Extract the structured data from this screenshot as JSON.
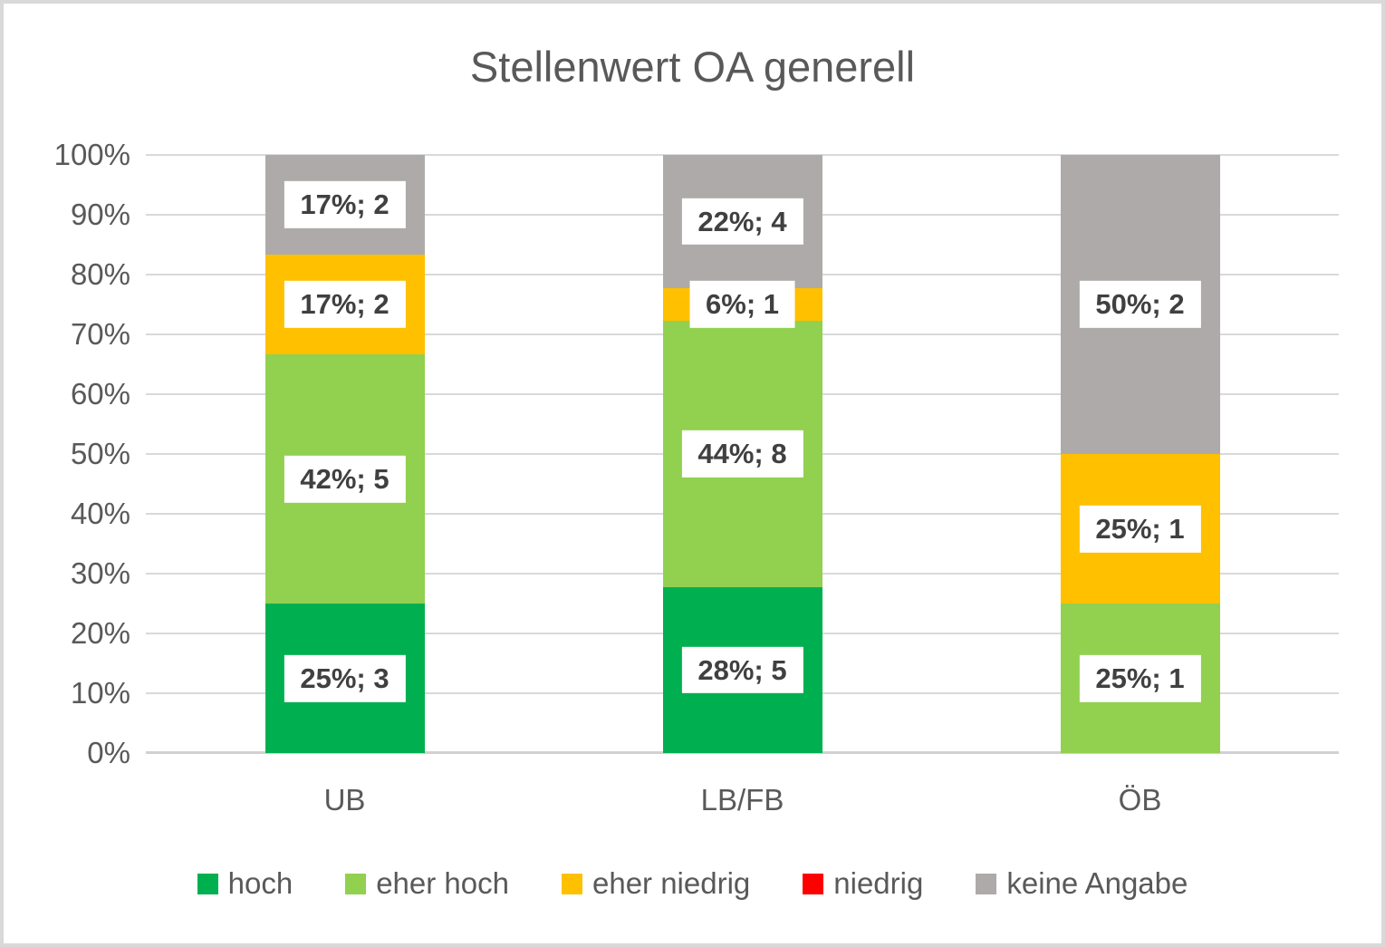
{
  "window": {
    "background_color": "#FFFFFF",
    "frame_border_color": "#D9D9D9"
  },
  "chart_data": {
    "type": "bar",
    "subtype": "stacked-100-percent",
    "title": "Stellenwert OA generell",
    "categories": [
      "UB",
      "LB/FB",
      "ÖB"
    ],
    "y_ticks": [
      "0%",
      "10%",
      "20%",
      "30%",
      "40%",
      "50%",
      "60%",
      "70%",
      "80%",
      "90%",
      "100%"
    ],
    "ylim": [
      0,
      100
    ],
    "grid": true,
    "gridline_color": "#D9D9D9",
    "legend_position": "bottom",
    "series": [
      {
        "name": "hoch",
        "color": "#00B050",
        "values": [
          25,
          27.78,
          0
        ],
        "counts": [
          3,
          5,
          0
        ],
        "labels": [
          "25%; 3",
          "28%; 5",
          ""
        ]
      },
      {
        "name": "eher hoch",
        "color": "#92D050",
        "values": [
          41.67,
          44.44,
          25
        ],
        "counts": [
          5,
          8,
          1
        ],
        "labels": [
          "42%; 5",
          "44%; 8",
          "25%; 1"
        ]
      },
      {
        "name": "eher niedrig",
        "color": "#FFC000",
        "values": [
          16.67,
          5.56,
          25
        ],
        "counts": [
          2,
          1,
          1
        ],
        "labels": [
          "17%; 2",
          "6%; 1",
          "25%; 1"
        ]
      },
      {
        "name": "niedrig",
        "color": "#FF0000",
        "values": [
          0,
          0,
          0
        ],
        "counts": [
          0,
          0,
          0
        ],
        "labels": [
          "",
          "",
          ""
        ]
      },
      {
        "name": "keine Angabe",
        "color": "#AEAAAA",
        "values": [
          16.66,
          22.22,
          50
        ],
        "counts": [
          2,
          4,
          2
        ],
        "labels": [
          "17%; 2",
          "22%; 4",
          "50%; 2"
        ]
      }
    ],
    "label_text_color": "#404040",
    "label_background_color": "#FFFFFF",
    "axis_text_color": "#595959",
    "title_text_color": "#595959"
  }
}
